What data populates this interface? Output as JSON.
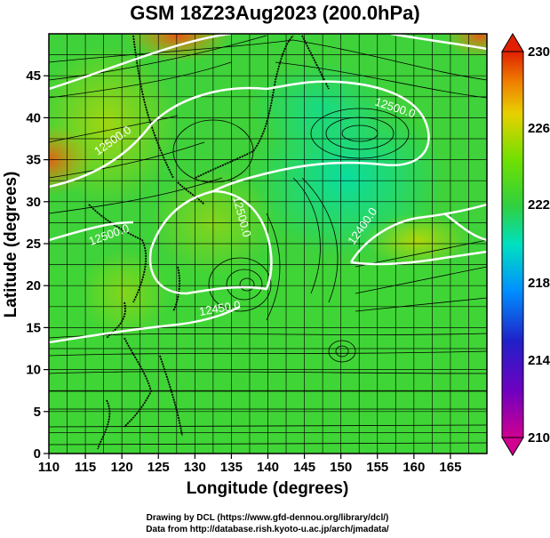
{
  "title": "GSM 18Z23Aug2023 (200.0hPa)",
  "x_axis": {
    "label": "Longitude (degrees)",
    "range": [
      110,
      170
    ],
    "ticks": [
      "110",
      "115",
      "120",
      "125",
      "130",
      "135",
      "140",
      "145",
      "150",
      "155",
      "160",
      "165"
    ]
  },
  "y_axis": {
    "label": "Latitude  (degrees)",
    "range": [
      0,
      50
    ],
    "ticks": [
      "0",
      "5",
      "10",
      "15",
      "20",
      "25",
      "30",
      "35",
      "40",
      "45"
    ]
  },
  "colorbar": {
    "min": 210,
    "max": 230,
    "labels": [
      "230",
      "226",
      "222",
      "218",
      "214",
      "210"
    ],
    "colors": [
      "#d00090",
      "#8000c8",
      "#2020d0",
      "#00a0ff",
      "#00e0c0",
      "#30d040",
      "#70e000",
      "#e0d000",
      "#f08000",
      "#e02000"
    ]
  },
  "contours": [
    {
      "label": "12500.0"
    },
    {
      "label": "12500.0"
    },
    {
      "label": "12400.0"
    },
    {
      "label": "12500.0"
    },
    {
      "label": "12500.0"
    },
    {
      "label": "12450.0"
    }
  ],
  "credits": [
    "Drawing by DCL (https://www.gfd-dennou.org/library/dcl/)",
    "Data from http://database.rish.kyoto-u.ac.jp/arch/jmadata/"
  ]
}
